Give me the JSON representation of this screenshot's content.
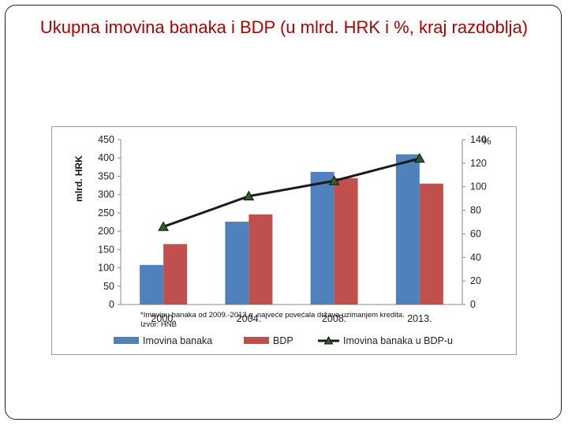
{
  "slide": {
    "title": "Ukupna imovina banaka i BDP (u mlrd. HRK i %, kraj razdoblja)"
  },
  "colors": {
    "bar_assets": "#4f81bd",
    "bar_gdp": "#c0504d",
    "line": "#1a1a1a",
    "marker": "#2e5e2e",
    "title": "#b00000"
  },
  "chart_data": {
    "type": "bar",
    "categories": [
      "2000.",
      "2004.",
      "2008.",
      "2013."
    ],
    "series": [
      {
        "name": "Imovina banaka",
        "type": "bar",
        "axis": "left",
        "values": [
          108,
          226,
          362,
          410
        ]
      },
      {
        "name": "BDP",
        "type": "bar",
        "axis": "left",
        "values": [
          165,
          246,
          345,
          330
        ]
      },
      {
        "name": "Imovina banaka u BDP-u",
        "type": "line",
        "axis": "right",
        "values": [
          66,
          92,
          105,
          124
        ]
      }
    ],
    "ylabel": "mlrd. HRK",
    "y2label": "%",
    "ylim": [
      0,
      450
    ],
    "y2lim": [
      0,
      140
    ],
    "yticks": [
      "0",
      "50",
      "100",
      "150",
      "200",
      "250",
      "300",
      "350",
      "400",
      "450"
    ],
    "y2ticks": [
      "0",
      "20",
      "40",
      "60",
      "80",
      "100",
      "120",
      "140"
    ],
    "legend_position": "bottom",
    "grid": false
  },
  "footnote": {
    "line1": "*Imovinu banaka od 2009.-2013.g. najveće povećala država uzimanjem kredita.",
    "line2": "Izvor: HNB"
  }
}
